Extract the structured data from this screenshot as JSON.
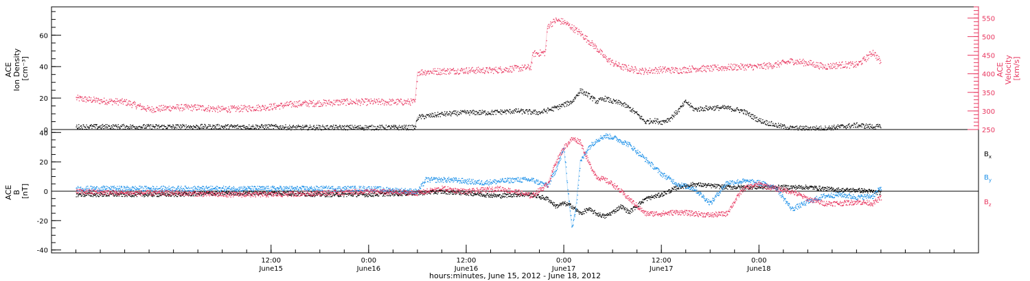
{
  "colors": {
    "density": "#000000",
    "velocity": "#e8365f",
    "bx": "#000000",
    "by": "#1a8fe8",
    "bz": "#e8365f",
    "frame": "#000000"
  },
  "chart_data": [
    {
      "type": "scatter",
      "panel": "top",
      "ylabel_lines": [
        "ACE",
        "Ion Density",
        "[cm⁻³]"
      ],
      "ylim": [
        0,
        78
      ],
      "yticks": [
        0,
        20,
        40,
        60
      ],
      "right_axis": {
        "ylabel_lines": [
          "ACE",
          "Velocity",
          "[km/s]"
        ],
        "ylim": [
          250,
          580
        ],
        "yticks": [
          250,
          300,
          350,
          400,
          450,
          500,
          550
        ]
      },
      "series": [
        {
          "key": "density",
          "axis": "left",
          "x": [
            -12,
            -6,
            0,
            3,
            6,
            9,
            12,
            15,
            18,
            21,
            24,
            27,
            29.7,
            30,
            33,
            36,
            39,
            42,
            45,
            47,
            48,
            49,
            50,
            51,
            52,
            53,
            54,
            55,
            56,
            57,
            58,
            59,
            60,
            61,
            62,
            63,
            64,
            66,
            68,
            70,
            72,
            74,
            76,
            78,
            80,
            82,
            84,
            86,
            87
          ],
          "y": [
            2,
            2,
            2,
            2,
            2,
            2,
            2,
            1.5,
            1.5,
            1.5,
            1.5,
            1.5,
            1.5,
            8,
            10,
            11,
            11,
            12,
            11,
            14,
            16,
            18,
            25,
            22,
            18,
            20,
            18,
            17,
            14,
            10,
            5,
            6,
            5,
            7,
            12,
            18,
            13,
            14,
            14,
            12,
            6,
            3,
            1,
            1,
            1,
            2,
            3,
            2,
            2
          ]
        },
        {
          "key": "velocity",
          "axis": "right",
          "x": [
            -12,
            -9,
            -6,
            -3,
            0,
            3,
            6,
            9,
            12,
            15,
            18,
            21,
            24,
            27,
            29.7,
            30,
            33,
            36,
            39,
            42,
            43.9,
            44.2,
            45.7,
            46,
            47,
            48,
            49,
            50,
            51,
            52,
            53,
            54,
            55,
            56,
            57,
            58,
            60,
            62,
            64,
            66,
            68,
            70,
            72,
            74,
            76,
            78,
            80,
            82,
            84,
            85,
            86,
            87
          ],
          "y": [
            335,
            328,
            325,
            305,
            310,
            310,
            305,
            308,
            312,
            320,
            322,
            325,
            325,
            325,
            325,
            405,
            408,
            410,
            410,
            415,
            418,
            455,
            458,
            530,
            545,
            540,
            525,
            510,
            490,
            470,
            445,
            430,
            420,
            415,
            410,
            408,
            412,
            410,
            415,
            415,
            418,
            420,
            420,
            425,
            435,
            430,
            420,
            425,
            425,
            440,
            460,
            430
          ]
        }
      ]
    },
    {
      "type": "scatter",
      "panel": "bottom",
      "ylabel_lines": [
        "ACE",
        "B",
        "[nT]"
      ],
      "ylim": [
        -42,
        42
      ],
      "yticks": [
        -40,
        -20,
        0,
        20,
        40
      ],
      "zero_line": true,
      "series": [
        {
          "key": "bx",
          "name": "B",
          "subscript": "x",
          "x": [
            -12,
            -6,
            0,
            6,
            12,
            18,
            24,
            30,
            33,
            36,
            40,
            42,
            44,
            46,
            47,
            48,
            49,
            50,
            51,
            52,
            53,
            54,
            55,
            56,
            58,
            60,
            62,
            64,
            66,
            68,
            70,
            72,
            74,
            76,
            78,
            80,
            82,
            84,
            86,
            87
          ],
          "y": [
            -2,
            -2,
            -2,
            -1,
            -1,
            -2,
            -2,
            -1,
            0,
            -1,
            -3,
            -2,
            -2,
            -5,
            -10,
            -8,
            -10,
            -15,
            -12,
            -15,
            -17,
            -14,
            -10,
            -14,
            -5,
            -2,
            3,
            5,
            4,
            3,
            3,
            3,
            3,
            3,
            3,
            2,
            1,
            1,
            0,
            -1
          ]
        },
        {
          "key": "by",
          "name": "B",
          "subscript": "y",
          "x": [
            -12,
            -6,
            0,
            6,
            12,
            18,
            24,
            30,
            31,
            34,
            38,
            42,
            44,
            46,
            47,
            47.5,
            48,
            48.5,
            49,
            49.5,
            50,
            51,
            52,
            53,
            54,
            56,
            58,
            60,
            62,
            64,
            66,
            68,
            70,
            72,
            74,
            76,
            78,
            80,
            82,
            84,
            86,
            87
          ],
          "y": [
            2,
            2,
            2,
            2,
            2,
            2,
            2,
            0,
            8,
            8,
            6,
            8,
            8,
            4,
            15,
            22,
            30,
            0,
            -25,
            -10,
            20,
            30,
            35,
            38,
            37,
            32,
            22,
            12,
            5,
            2,
            -8,
            6,
            7,
            6,
            3,
            -12,
            -7,
            -3,
            -2,
            -4,
            -3,
            3
          ]
        },
        {
          "key": "bz",
          "name": "B",
          "subscript": "z",
          "x": [
            -12,
            -6,
            0,
            6,
            12,
            18,
            24,
            30,
            33,
            36,
            40,
            42,
            44,
            46,
            47,
            48,
            49,
            50,
            51,
            52,
            53,
            54,
            55,
            56,
            58,
            60,
            62,
            64,
            66,
            68,
            70,
            72,
            74,
            76,
            78,
            80,
            82,
            84,
            86,
            87
          ],
          "y": [
            0,
            -1,
            -1,
            -2,
            -2,
            -1,
            0,
            -1,
            2,
            0,
            2,
            0,
            -3,
            5,
            20,
            30,
            36,
            34,
            20,
            10,
            8,
            5,
            0,
            -5,
            -15,
            -15,
            -14,
            -15,
            -16,
            -15,
            2,
            5,
            2,
            0,
            -5,
            -8,
            -8,
            -7,
            -8,
            -4
          ]
        }
      ],
      "legend_placement": "right"
    }
  ],
  "x_axis": {
    "unit_hours_from": "0:00 June15",
    "xlim": [
      -15,
      99
    ],
    "ticks": [
      {
        "x": 12,
        "label": "12:00",
        "day": "June15"
      },
      {
        "x": 24,
        "label": "0:00",
        "day": "June16"
      },
      {
        "x": 36,
        "label": "12:00",
        "day": "June16"
      },
      {
        "x": 48,
        "label": "0:00",
        "day": "June17"
      },
      {
        "x": 60,
        "label": "12:00",
        "day": "June17"
      },
      {
        "x": 72,
        "label": "0:00",
        "day": "June18"
      }
    ],
    "xlabel": "hours:minutes, June 15, 2012 - June 18, 2012"
  }
}
